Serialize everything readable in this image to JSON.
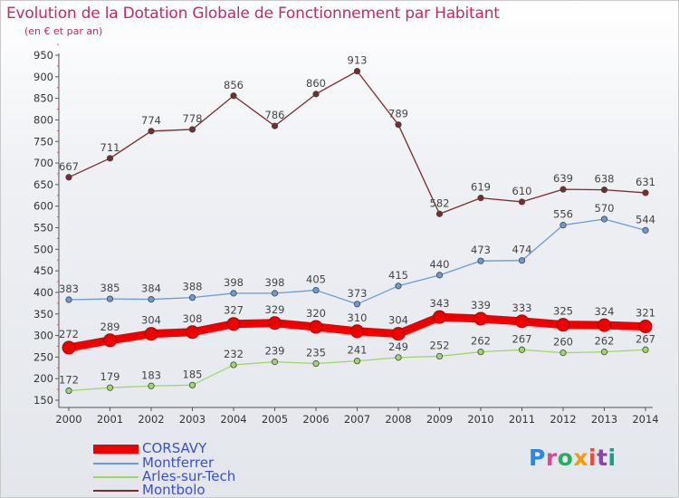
{
  "title": "Evolution de la Dotation Globale de Fonctionnement par Habitant",
  "subtitle": "(en € et par an)",
  "logo": {
    "text": "Proxiti",
    "colors": [
      "#2e86de",
      "#e84393",
      "#27ae60",
      "#f39c12",
      "#e74c3c",
      "#8e44ad",
      "#16a085"
    ]
  },
  "chart_data": {
    "type": "line",
    "title": "Evolution de la Dotation Globale de Fonctionnement par Habitant",
    "subtitle": "(en € et par an)",
    "x": [
      "2000",
      "2001",
      "2002",
      "2003",
      "2004",
      "2005",
      "2006",
      "2007",
      "2008",
      "2009",
      "2010",
      "2011",
      "2012",
      "2013",
      "2014"
    ],
    "ylim": [
      150,
      950
    ],
    "yticks": [
      150,
      200,
      250,
      300,
      350,
      400,
      450,
      500,
      550,
      600,
      650,
      700,
      750,
      800,
      850,
      900,
      950
    ],
    "grid": false,
    "legend_position": "bottom-left",
    "series": [
      {
        "name": "CORSAVY",
        "color": "#ee0000",
        "values": [
          272,
          289,
          304,
          308,
          327,
          329,
          320,
          310,
          304,
          343,
          339,
          333,
          325,
          324,
          321
        ]
      },
      {
        "name": "Montferrer",
        "color": "#6a9bd4",
        "values": [
          383,
          385,
          384,
          388,
          398,
          398,
          405,
          373,
          415,
          440,
          473,
          474,
          556,
          570,
          544
        ]
      },
      {
        "name": "Arles-sur-Tech",
        "color": "#9fd66b",
        "values": [
          172,
          179,
          183,
          185,
          232,
          239,
          235,
          241,
          249,
          252,
          262,
          267,
          260,
          262,
          267
        ]
      },
      {
        "name": "Montbolo",
        "color": "#7a2b2b",
        "values": [
          667,
          711,
          774,
          778,
          856,
          786,
          860,
          913,
          789,
          582,
          619,
          610,
          639,
          638,
          631
        ]
      }
    ]
  }
}
